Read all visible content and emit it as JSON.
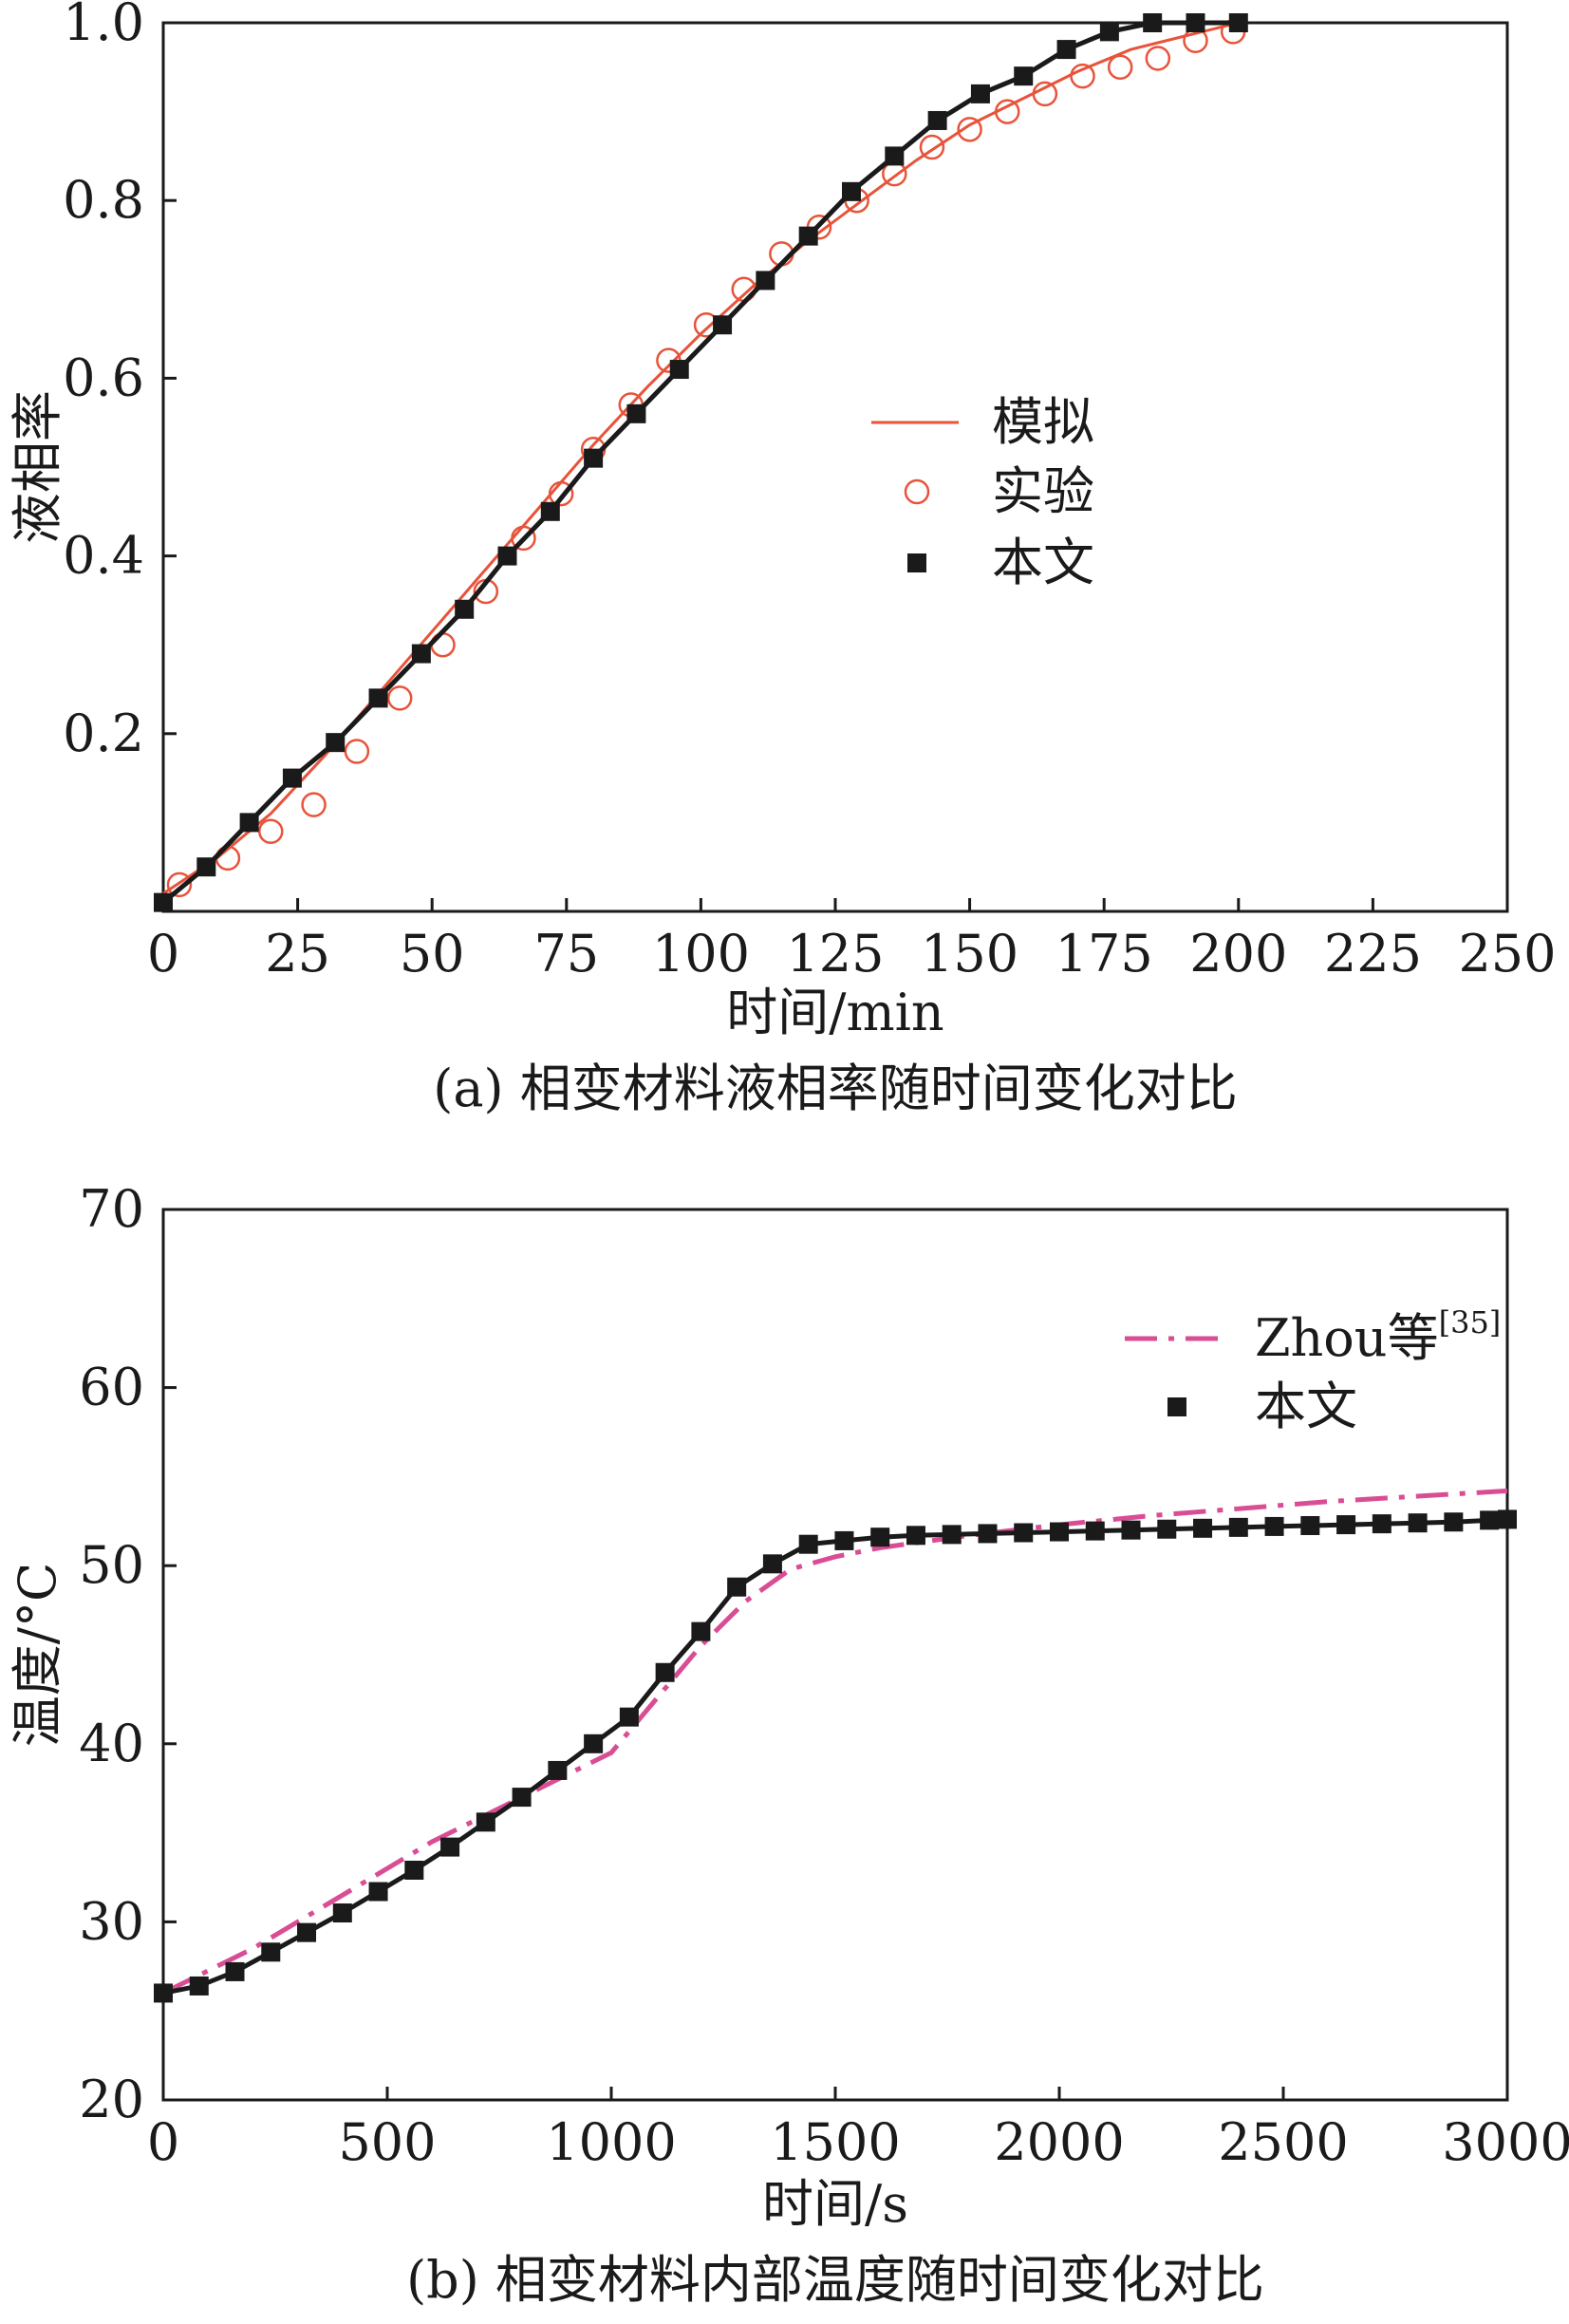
{
  "chart_data": [
    {
      "type": "line",
      "panel": "a",
      "caption": "(a) 相变材料液相率随时间变化对比",
      "xlabel": "时间/min",
      "ylabel": "液相率",
      "xlim": [
        0,
        250
      ],
      "ylim": [
        0,
        1.0
      ],
      "xticks": [
        0,
        25,
        50,
        75,
        100,
        125,
        150,
        175,
        200,
        225,
        250
      ],
      "yticks": [
        0.2,
        0.4,
        0.6,
        0.8,
        1.0
      ],
      "xtick_labels": [
        "0",
        "25",
        "50",
        "75",
        "100",
        "125",
        "150",
        "175",
        "200",
        "225",
        "250"
      ],
      "ytick_labels": [
        "0.2",
        "0.4",
        "0.6",
        "0.8",
        "1.0"
      ],
      "grid": false,
      "legend_position": "center-right",
      "series": [
        {
          "name": "模拟",
          "style": "line",
          "color": "#e8533a",
          "x": [
            0,
            10,
            20,
            30,
            40,
            50,
            60,
            70,
            80,
            90,
            100,
            110,
            120,
            130,
            140,
            150,
            160,
            170,
            180,
            190,
            200
          ],
          "y": [
            0.02,
            0.06,
            0.11,
            0.175,
            0.245,
            0.315,
            0.385,
            0.455,
            0.525,
            0.59,
            0.65,
            0.705,
            0.755,
            0.8,
            0.845,
            0.885,
            0.915,
            0.945,
            0.97,
            0.985,
            1.0
          ]
        },
        {
          "name": "实验",
          "style": "open-circle",
          "color": "#e8533a",
          "x": [
            3,
            12,
            20,
            28,
            36,
            44,
            52,
            60,
            67,
            74,
            80,
            87,
            94,
            101,
            108,
            115,
            122,
            129,
            136,
            143,
            150,
            157,
            164,
            171,
            178,
            185,
            192,
            199
          ],
          "y": [
            0.03,
            0.06,
            0.09,
            0.12,
            0.18,
            0.24,
            0.3,
            0.36,
            0.42,
            0.47,
            0.52,
            0.57,
            0.62,
            0.66,
            0.7,
            0.74,
            0.77,
            0.8,
            0.83,
            0.86,
            0.88,
            0.9,
            0.92,
            0.94,
            0.95,
            0.96,
            0.98,
            0.99
          ]
        },
        {
          "name": "本文",
          "style": "line-filled-square",
          "color": "#1a1a1a",
          "x": [
            0,
            8,
            16,
            24,
            32,
            40,
            48,
            56,
            64,
            72,
            80,
            88,
            96,
            104,
            112,
            120,
            128,
            136,
            144,
            152,
            160,
            168,
            176,
            184,
            192,
            200
          ],
          "y": [
            0.01,
            0.05,
            0.1,
            0.15,
            0.19,
            0.24,
            0.29,
            0.34,
            0.4,
            0.45,
            0.51,
            0.56,
            0.61,
            0.66,
            0.71,
            0.76,
            0.81,
            0.85,
            0.89,
            0.92,
            0.94,
            0.97,
            0.99,
            1.0,
            1.0,
            1.0
          ]
        }
      ]
    },
    {
      "type": "line",
      "panel": "b",
      "caption": "(b) 相变材料内部温度随时间变化对比",
      "xlabel": "时间/s",
      "ylabel": "温度/°C",
      "xlim": [
        0,
        3000
      ],
      "ylim": [
        20,
        70
      ],
      "xticks": [
        0,
        500,
        1000,
        1500,
        2000,
        2500,
        3000
      ],
      "yticks": [
        20,
        30,
        40,
        50,
        60,
        70
      ],
      "xtick_labels": [
        "0",
        "500",
        "1000",
        "1500",
        "2000",
        "2500",
        "3000"
      ],
      "ytick_labels": [
        "20",
        "30",
        "40",
        "50",
        "60",
        "70"
      ],
      "grid": false,
      "legend_position": "top-right",
      "series": [
        {
          "name": "Zhou等",
          "name_superscript": "[35]",
          "style": "dash-dot",
          "color": "#d94d94",
          "x": [
            0,
            200,
            400,
            600,
            800,
            1000,
            1100,
            1200,
            1300,
            1400,
            1500,
            1600,
            1800,
            2000,
            2200,
            2400,
            2600,
            2800,
            3000
          ],
          "y": [
            26,
            28.5,
            31.5,
            34.5,
            37,
            39.5,
            42.5,
            45.5,
            48,
            49.8,
            50.5,
            51,
            51.7,
            52.3,
            52.8,
            53.2,
            53.6,
            53.9,
            54.2
          ]
        },
        {
          "name": "本文",
          "style": "line-filled-square",
          "color": "#1a1a1a",
          "x": [
            0,
            80,
            160,
            240,
            320,
            400,
            480,
            560,
            640,
            720,
            800,
            880,
            960,
            1040,
            1120,
            1200,
            1280,
            1360,
            1440,
            1520,
            1600,
            1680,
            1760,
            1840,
            1920,
            2000,
            2080,
            2160,
            2240,
            2320,
            2400,
            2480,
            2560,
            2640,
            2720,
            2800,
            2880,
            2960,
            3000
          ],
          "y": [
            26,
            26.4,
            27.2,
            28.3,
            29.4,
            30.5,
            31.7,
            32.9,
            34.2,
            35.6,
            37,
            38.5,
            40,
            41.5,
            44,
            46.3,
            48.8,
            50.1,
            51.2,
            51.4,
            51.6,
            51.7,
            51.75,
            51.8,
            51.85,
            51.9,
            51.95,
            52,
            52.05,
            52.1,
            52.15,
            52.2,
            52.25,
            52.3,
            52.35,
            52.4,
            52.45,
            52.55,
            52.6
          ]
        }
      ]
    }
  ]
}
